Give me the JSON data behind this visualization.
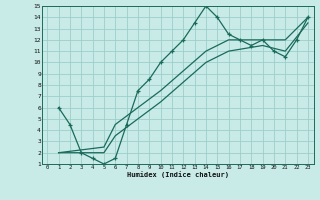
{
  "xlabel": "Humidex (Indice chaleur)",
  "bg_color": "#c8ebe8",
  "grid_color": "#9dceca",
  "line_color": "#1a6b5a",
  "xlim": [
    -0.5,
    23.5
  ],
  "ylim": [
    1,
    15
  ],
  "xticks": [
    0,
    1,
    2,
    3,
    4,
    5,
    6,
    7,
    8,
    9,
    10,
    11,
    12,
    13,
    14,
    15,
    16,
    17,
    18,
    19,
    20,
    21,
    22,
    23
  ],
  "yticks": [
    1,
    2,
    3,
    4,
    5,
    6,
    7,
    8,
    9,
    10,
    11,
    12,
    13,
    14,
    15
  ],
  "line1_x": [
    1,
    2,
    3,
    4,
    5,
    6,
    7,
    8,
    9,
    10,
    11,
    12,
    13,
    14,
    15,
    16,
    17,
    18,
    19,
    20,
    21,
    22,
    23
  ],
  "line1_y": [
    6,
    4.5,
    2,
    1.5,
    1,
    1.5,
    4.5,
    7.5,
    8.5,
    10,
    11,
    12,
    13.5,
    15,
    14,
    12.5,
    12,
    11.5,
    12,
    11,
    10.5,
    12,
    14
  ],
  "line2_x": [
    1,
    5,
    6,
    10,
    14,
    16,
    19,
    21,
    23
  ],
  "line2_y": [
    2,
    2.5,
    4.5,
    7.5,
    11,
    12,
    12,
    12,
    14
  ],
  "line3_x": [
    1,
    5,
    6,
    10,
    14,
    16,
    19,
    21,
    23
  ],
  "line3_y": [
    2,
    2,
    3.5,
    6.5,
    10,
    11,
    11.5,
    11,
    13.5
  ]
}
